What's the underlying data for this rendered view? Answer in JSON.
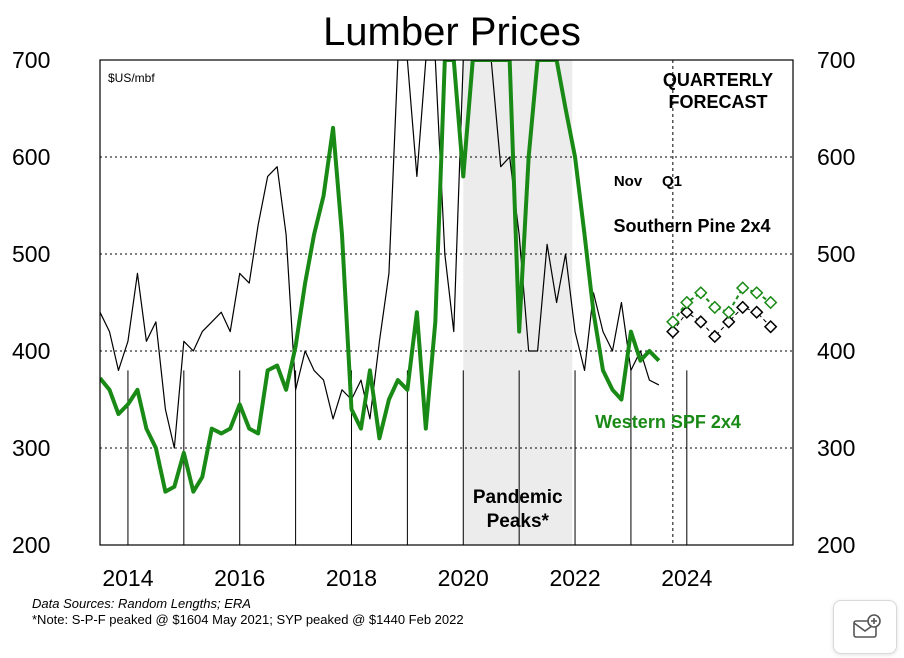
{
  "chart_data": {
    "type": "line",
    "title": "Lumber Prices",
    "unit_label": "$US/mbf",
    "ylim": [
      200,
      700
    ],
    "y_ticks": [
      200,
      300,
      400,
      500,
      600,
      700
    ],
    "xlim": [
      2013.5,
      2025.9
    ],
    "x_tick_labels": [
      "2014",
      "2016",
      "2018",
      "2020",
      "2022",
      "2024"
    ],
    "grid": true,
    "shaded_region": {
      "x": [
        2020.0,
        2021.95
      ],
      "label_line1": "Pandemic",
      "label_line2": "Peaks*"
    },
    "forecast_divider_x": 2023.75,
    "forecast_label_line1": "QUARTERLY",
    "forecast_label_line2": "FORECAST",
    "nov_label": "Nov",
    "q1_label": "Q1",
    "series": [
      {
        "name": "Southern Pine 2x4",
        "color": "#000000",
        "x": [
          2013.5,
          2013.67,
          2013.83,
          2014.0,
          2014.17,
          2014.33,
          2014.5,
          2014.67,
          2014.83,
          2015.0,
          2015.17,
          2015.33,
          2015.5,
          2015.67,
          2015.83,
          2016.0,
          2016.17,
          2016.33,
          2016.5,
          2016.67,
          2016.83,
          2017.0,
          2017.17,
          2017.33,
          2017.5,
          2017.67,
          2017.83,
          2018.0,
          2018.17,
          2018.33,
          2018.5,
          2018.67,
          2018.83,
          2019.0,
          2019.17,
          2019.33,
          2019.5,
          2019.67,
          2019.83,
          2020.0,
          2020.17,
          2020.33,
          2020.5,
          2020.67,
          2020.83,
          2021.0,
          2021.17,
          2021.33,
          2021.5,
          2021.67,
          2021.83,
          2022.0,
          2022.17,
          2022.33,
          2022.5,
          2022.67,
          2022.83,
          2023.0,
          2023.17,
          2023.33,
          2023.5
        ],
        "y": [
          440,
          420,
          380,
          410,
          480,
          410,
          430,
          340,
          300,
          410,
          400,
          420,
          430,
          440,
          420,
          480,
          470,
          530,
          580,
          590,
          520,
          360,
          400,
          380,
          370,
          330,
          360,
          350,
          370,
          330,
          410,
          480,
          700,
          700,
          580,
          700,
          700,
          500,
          420,
          700,
          700,
          700,
          700,
          590,
          600,
          520,
          400,
          400,
          510,
          450,
          500,
          420,
          380,
          460,
          420,
          400,
          450,
          380,
          400,
          370,
          365
        ]
      },
      {
        "name": "Western SPF 2x4",
        "color": "#1a8a16",
        "x": [
          2013.5,
          2013.67,
          2013.83,
          2014.0,
          2014.17,
          2014.33,
          2014.5,
          2014.67,
          2014.83,
          2015.0,
          2015.17,
          2015.33,
          2015.5,
          2015.67,
          2015.83,
          2016.0,
          2016.17,
          2016.33,
          2016.5,
          2016.67,
          2016.83,
          2017.0,
          2017.17,
          2017.33,
          2017.5,
          2017.67,
          2017.83,
          2018.0,
          2018.17,
          2018.33,
          2018.5,
          2018.67,
          2018.83,
          2019.0,
          2019.17,
          2019.33,
          2019.5,
          2019.67,
          2019.83,
          2020.0,
          2020.17,
          2020.33,
          2020.5,
          2020.67,
          2020.83,
          2021.0,
          2021.17,
          2021.33,
          2021.5,
          2021.67,
          2021.83,
          2022.0,
          2022.17,
          2022.33,
          2022.5,
          2022.67,
          2022.83,
          2023.0,
          2023.17,
          2023.33,
          2023.5
        ],
        "y": [
          372,
          360,
          335,
          345,
          360,
          320,
          300,
          255,
          260,
          295,
          255,
          270,
          320,
          315,
          320,
          345,
          320,
          315,
          380,
          385,
          360,
          405,
          470,
          520,
          560,
          630,
          520,
          340,
          320,
          380,
          310,
          350,
          370,
          360,
          440,
          320,
          430,
          700,
          700,
          580,
          700,
          700,
          700,
          700,
          700,
          420,
          600,
          700,
          700,
          700,
          650,
          600,
          520,
          440,
          380,
          360,
          350,
          420,
          390,
          400,
          390
        ]
      },
      {
        "name": "Southern Pine forecast",
        "color": "#000000",
        "x": [
          2023.75,
          2024.0,
          2024.25,
          2024.5,
          2024.75,
          2025.0,
          2025.25,
          2025.5
        ],
        "y": [
          420,
          440,
          430,
          415,
          430,
          445,
          440,
          425
        ]
      },
      {
        "name": "Western SPF forecast",
        "color": "#1a8a16",
        "x": [
          2023.75,
          2024.0,
          2024.25,
          2024.5,
          2024.75,
          2025.0,
          2025.25,
          2025.5
        ],
        "y": [
          430,
          450,
          460,
          445,
          440,
          465,
          460,
          450
        ]
      }
    ],
    "series_labels": [
      "Southern Pine 2x4",
      "Western SPF 2x4"
    ]
  },
  "sources": {
    "line1": "Data Sources: Random Lengths; ERA",
    "line2": "*Note: S-P-F peaked @ $1604 May 2021; SYP peaked @ $1440 Feb 2022"
  }
}
